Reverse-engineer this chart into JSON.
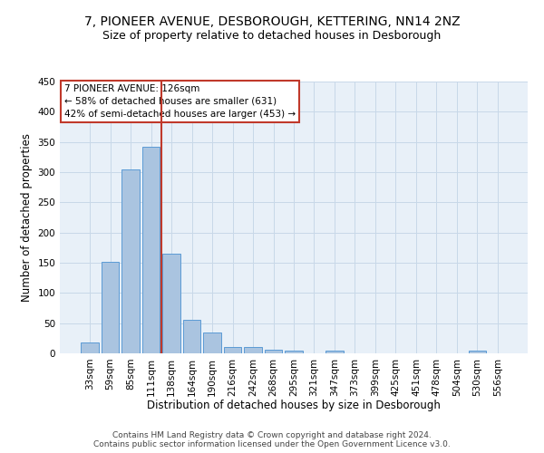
{
  "title": "7, PIONEER AVENUE, DESBOROUGH, KETTERING, NN14 2NZ",
  "subtitle": "Size of property relative to detached houses in Desborough",
  "xlabel": "Distribution of detached houses by size in Desborough",
  "ylabel": "Number of detached properties",
  "footer": "Contains HM Land Registry data © Crown copyright and database right 2024.\nContains public sector information licensed under the Open Government Licence v3.0.",
  "categories": [
    "33sqm",
    "59sqm",
    "85sqm",
    "111sqm",
    "138sqm",
    "164sqm",
    "190sqm",
    "216sqm",
    "242sqm",
    "268sqm",
    "295sqm",
    "321sqm",
    "347sqm",
    "373sqm",
    "399sqm",
    "425sqm",
    "451sqm",
    "478sqm",
    "504sqm",
    "530sqm",
    "556sqm"
  ],
  "values": [
    18,
    152,
    305,
    342,
    165,
    55,
    35,
    11,
    10,
    6,
    4,
    0,
    5,
    0,
    0,
    0,
    0,
    0,
    0,
    4,
    0
  ],
  "bar_color": "#aac4e0",
  "bar_edge_color": "#5b9bd5",
  "property_label": "7 PIONEER AVENUE: 126sqm",
  "annotation_line1": "← 58% of detached houses are smaller (631)",
  "annotation_line2": "42% of semi-detached houses are larger (453) →",
  "vline_color": "#c0392b",
  "vline_x_index": 3.5,
  "annotation_box_color": "#c0392b",
  "ylim": [
    0,
    450
  ],
  "yticks": [
    0,
    50,
    100,
    150,
    200,
    250,
    300,
    350,
    400,
    450
  ],
  "background_color": "#ffffff",
  "plot_bg_color": "#e8f0f8",
  "grid_color": "#c8d8e8",
  "title_fontsize": 10,
  "subtitle_fontsize": 9,
  "tick_fontsize": 7.5,
  "ylabel_fontsize": 8.5,
  "xlabel_fontsize": 8.5,
  "annotation_fontsize": 7.5,
  "footer_fontsize": 6.5
}
